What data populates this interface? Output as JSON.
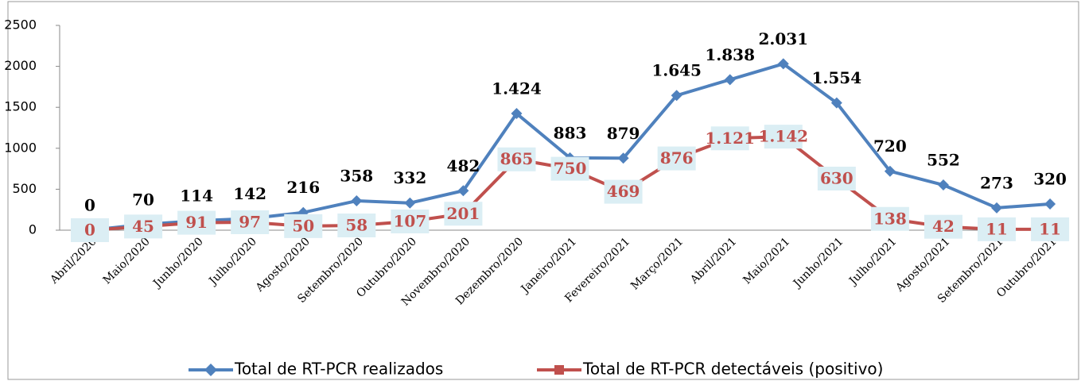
{
  "chart_data": {
    "type": "line",
    "categories": [
      "Abril/2020",
      "Maio/2020",
      "Junho/2020",
      "Julho/2020",
      "Agosto/2020",
      "Setembro/2020",
      "Outubro/2020",
      "Novembro/2020",
      "Dezembro/2020",
      "Janeiro/2021",
      "Fevereiro/2021",
      "Março/2021",
      "Abril/2021",
      "Maio/2021",
      "Junho/2021",
      "Julho/2021",
      "Agosto/2021",
      "Setembro/2021",
      "Outubro/2021"
    ],
    "series": [
      {
        "name": "Total de RT-PCR realizados",
        "color": "#4f81bd",
        "values": [
          0,
          70,
          114,
          142,
          216,
          358,
          332,
          482,
          1424,
          883,
          879,
          1645,
          1838,
          2031,
          1554,
          720,
          552,
          273,
          320
        ],
        "value_labels": [
          "0",
          "70",
          "114",
          "142",
          "216",
          "358",
          "332",
          "482",
          "1.424",
          "883",
          "879",
          "1.645",
          "1.838",
          "2.031",
          "1.554",
          "720",
          "552",
          "273",
          "320"
        ]
      },
      {
        "name": "Total de RT-PCR detectáveis (positivo)",
        "color": "#c0504d",
        "values": [
          0,
          45,
          91,
          97,
          50,
          58,
          107,
          201,
          865,
          750,
          469,
          876,
          1121,
          1142,
          630,
          138,
          42,
          11,
          11
        ],
        "value_labels": [
          "0",
          "45",
          "91",
          "97",
          "50",
          "58",
          "107",
          "201",
          "865",
          "750",
          "469",
          "876",
          "1.121",
          "1.142",
          "630",
          "138",
          "42",
          "11",
          "11"
        ]
      }
    ],
    "ylim": [
      0,
      2500
    ],
    "yticks": [
      0,
      500,
      1000,
      1500,
      2000,
      2500
    ],
    "grid": false,
    "legend": "bottom"
  }
}
